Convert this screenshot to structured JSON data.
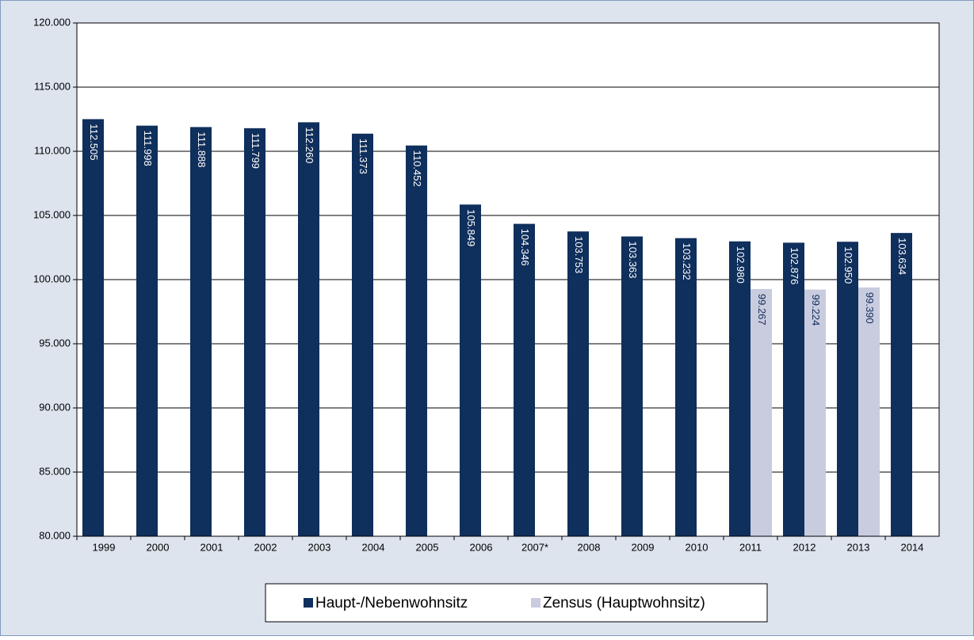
{
  "chart_data": {
    "type": "bar",
    "categories": [
      "1999",
      "2000",
      "2001",
      "2002",
      "2003",
      "2004",
      "2005",
      "2006",
      "2007*",
      "2008",
      "2009",
      "2010",
      "2011",
      "2012",
      "2013",
      "2014"
    ],
    "series": [
      {
        "name": "Haupt-/Nebenwohnsitz",
        "color": "#0f2f5c",
        "values": [
          112505,
          111998,
          111888,
          111799,
          112260,
          111373,
          110452,
          105849,
          104346,
          103753,
          103363,
          103232,
          102980,
          102876,
          102950,
          103634
        ],
        "value_labels": [
          "112.505",
          "111.998",
          "111.888",
          "111.799",
          "112.260",
          "111.373",
          "110.452",
          "105.849",
          "104.346",
          "103.753",
          "103.363",
          "103.232",
          "102.980",
          "102.876",
          "102.950",
          "103.634"
        ]
      },
      {
        "name": "Zensus (Hauptwohnsitz)",
        "color": "#c9cbde",
        "values": [
          null,
          null,
          null,
          null,
          null,
          null,
          null,
          null,
          null,
          null,
          null,
          null,
          99267,
          99224,
          99390,
          null
        ],
        "value_labels": [
          null,
          null,
          null,
          null,
          null,
          null,
          null,
          null,
          null,
          null,
          null,
          null,
          "99.267",
          "99.224",
          "99.390",
          null
        ]
      }
    ],
    "ylim": [
      80000,
      120000
    ],
    "yticks": [
      {
        "value": 80000,
        "label": "80.000"
      },
      {
        "value": 85000,
        "label": "85.000"
      },
      {
        "value": 90000,
        "label": "90.000"
      },
      {
        "value": 95000,
        "label": "95.000"
      },
      {
        "value": 100000,
        "label": "100.000"
      },
      {
        "value": 105000,
        "label": "105.000"
      },
      {
        "value": 110000,
        "label": "110.000"
      },
      {
        "value": 115000,
        "label": "115.000"
      },
      {
        "value": 120000,
        "label": "120.000"
      }
    ],
    "grid": true,
    "legend": "bottom"
  }
}
